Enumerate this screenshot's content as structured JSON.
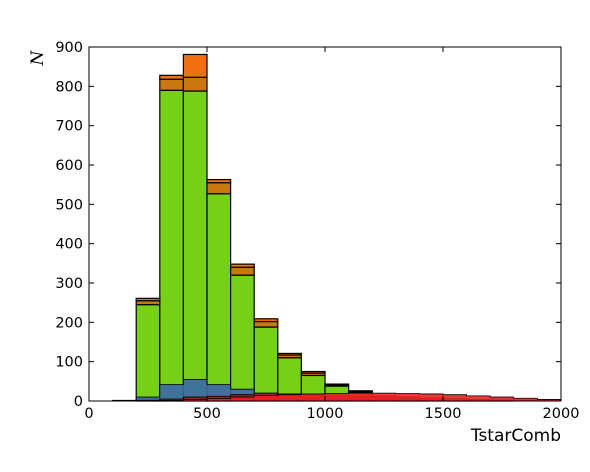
{
  "chart_data": {
    "type": "bar",
    "stacked": true,
    "histogram": true,
    "xlabel": "TstarComb",
    "ylabel": "N",
    "xlim": [
      0,
      2000
    ],
    "ylim": [
      0,
      900
    ],
    "x_ticks": [
      0,
      500,
      1000,
      1500,
      2000
    ],
    "y_ticks": [
      0,
      100,
      200,
      300,
      400,
      500,
      600,
      700,
      800,
      900
    ],
    "bin_width": 100,
    "bin_edges": [
      0,
      100,
      200,
      300,
      400,
      500,
      600,
      700,
      800,
      900,
      1000,
      1100,
      1200,
      1300,
      1400,
      1500,
      1600,
      1700,
      1800,
      1900,
      2000
    ],
    "grid": false,
    "legend": "none",
    "stacked_series": [
      {
        "color": "#76d016",
        "values": [
          0,
          0,
          245,
          790,
          788,
          527,
          320,
          188,
          110,
          65,
          38,
          22,
          10,
          5,
          3,
          2,
          1,
          1,
          0,
          0
        ]
      },
      {
        "color": "#c8780e",
        "values": [
          0,
          0,
          10,
          28,
          35,
          28,
          20,
          14,
          7,
          6,
          3,
          2,
          1,
          1,
          0,
          0,
          0,
          0,
          0,
          0
        ]
      },
      {
        "color": "#f07010",
        "values": [
          0,
          0,
          6,
          10,
          58,
          8,
          8,
          7,
          4,
          4,
          2,
          2,
          1,
          0,
          0,
          0,
          0,
          0,
          0,
          0
        ]
      }
    ],
    "overlay_series": [
      {
        "color": "#3a68a8",
        "values": [
          0,
          2,
          10,
          42,
          55,
          42,
          30,
          20,
          12,
          8,
          5,
          3,
          1,
          1,
          0,
          0,
          0,
          0,
          0,
          0
        ]
      },
      {
        "color": "#a01818",
        "values": [
          0,
          0,
          2,
          5,
          10,
          12,
          16,
          20,
          18,
          16,
          14,
          12,
          11,
          10,
          8,
          6,
          4,
          3,
          2,
          1
        ]
      },
      {
        "color": "#ee2020",
        "values": [
          0,
          0,
          0,
          2,
          4,
          6,
          10,
          14,
          16,
          18,
          19,
          20,
          20,
          19,
          18,
          16,
          13,
          10,
          7,
          4
        ]
      }
    ]
  }
}
